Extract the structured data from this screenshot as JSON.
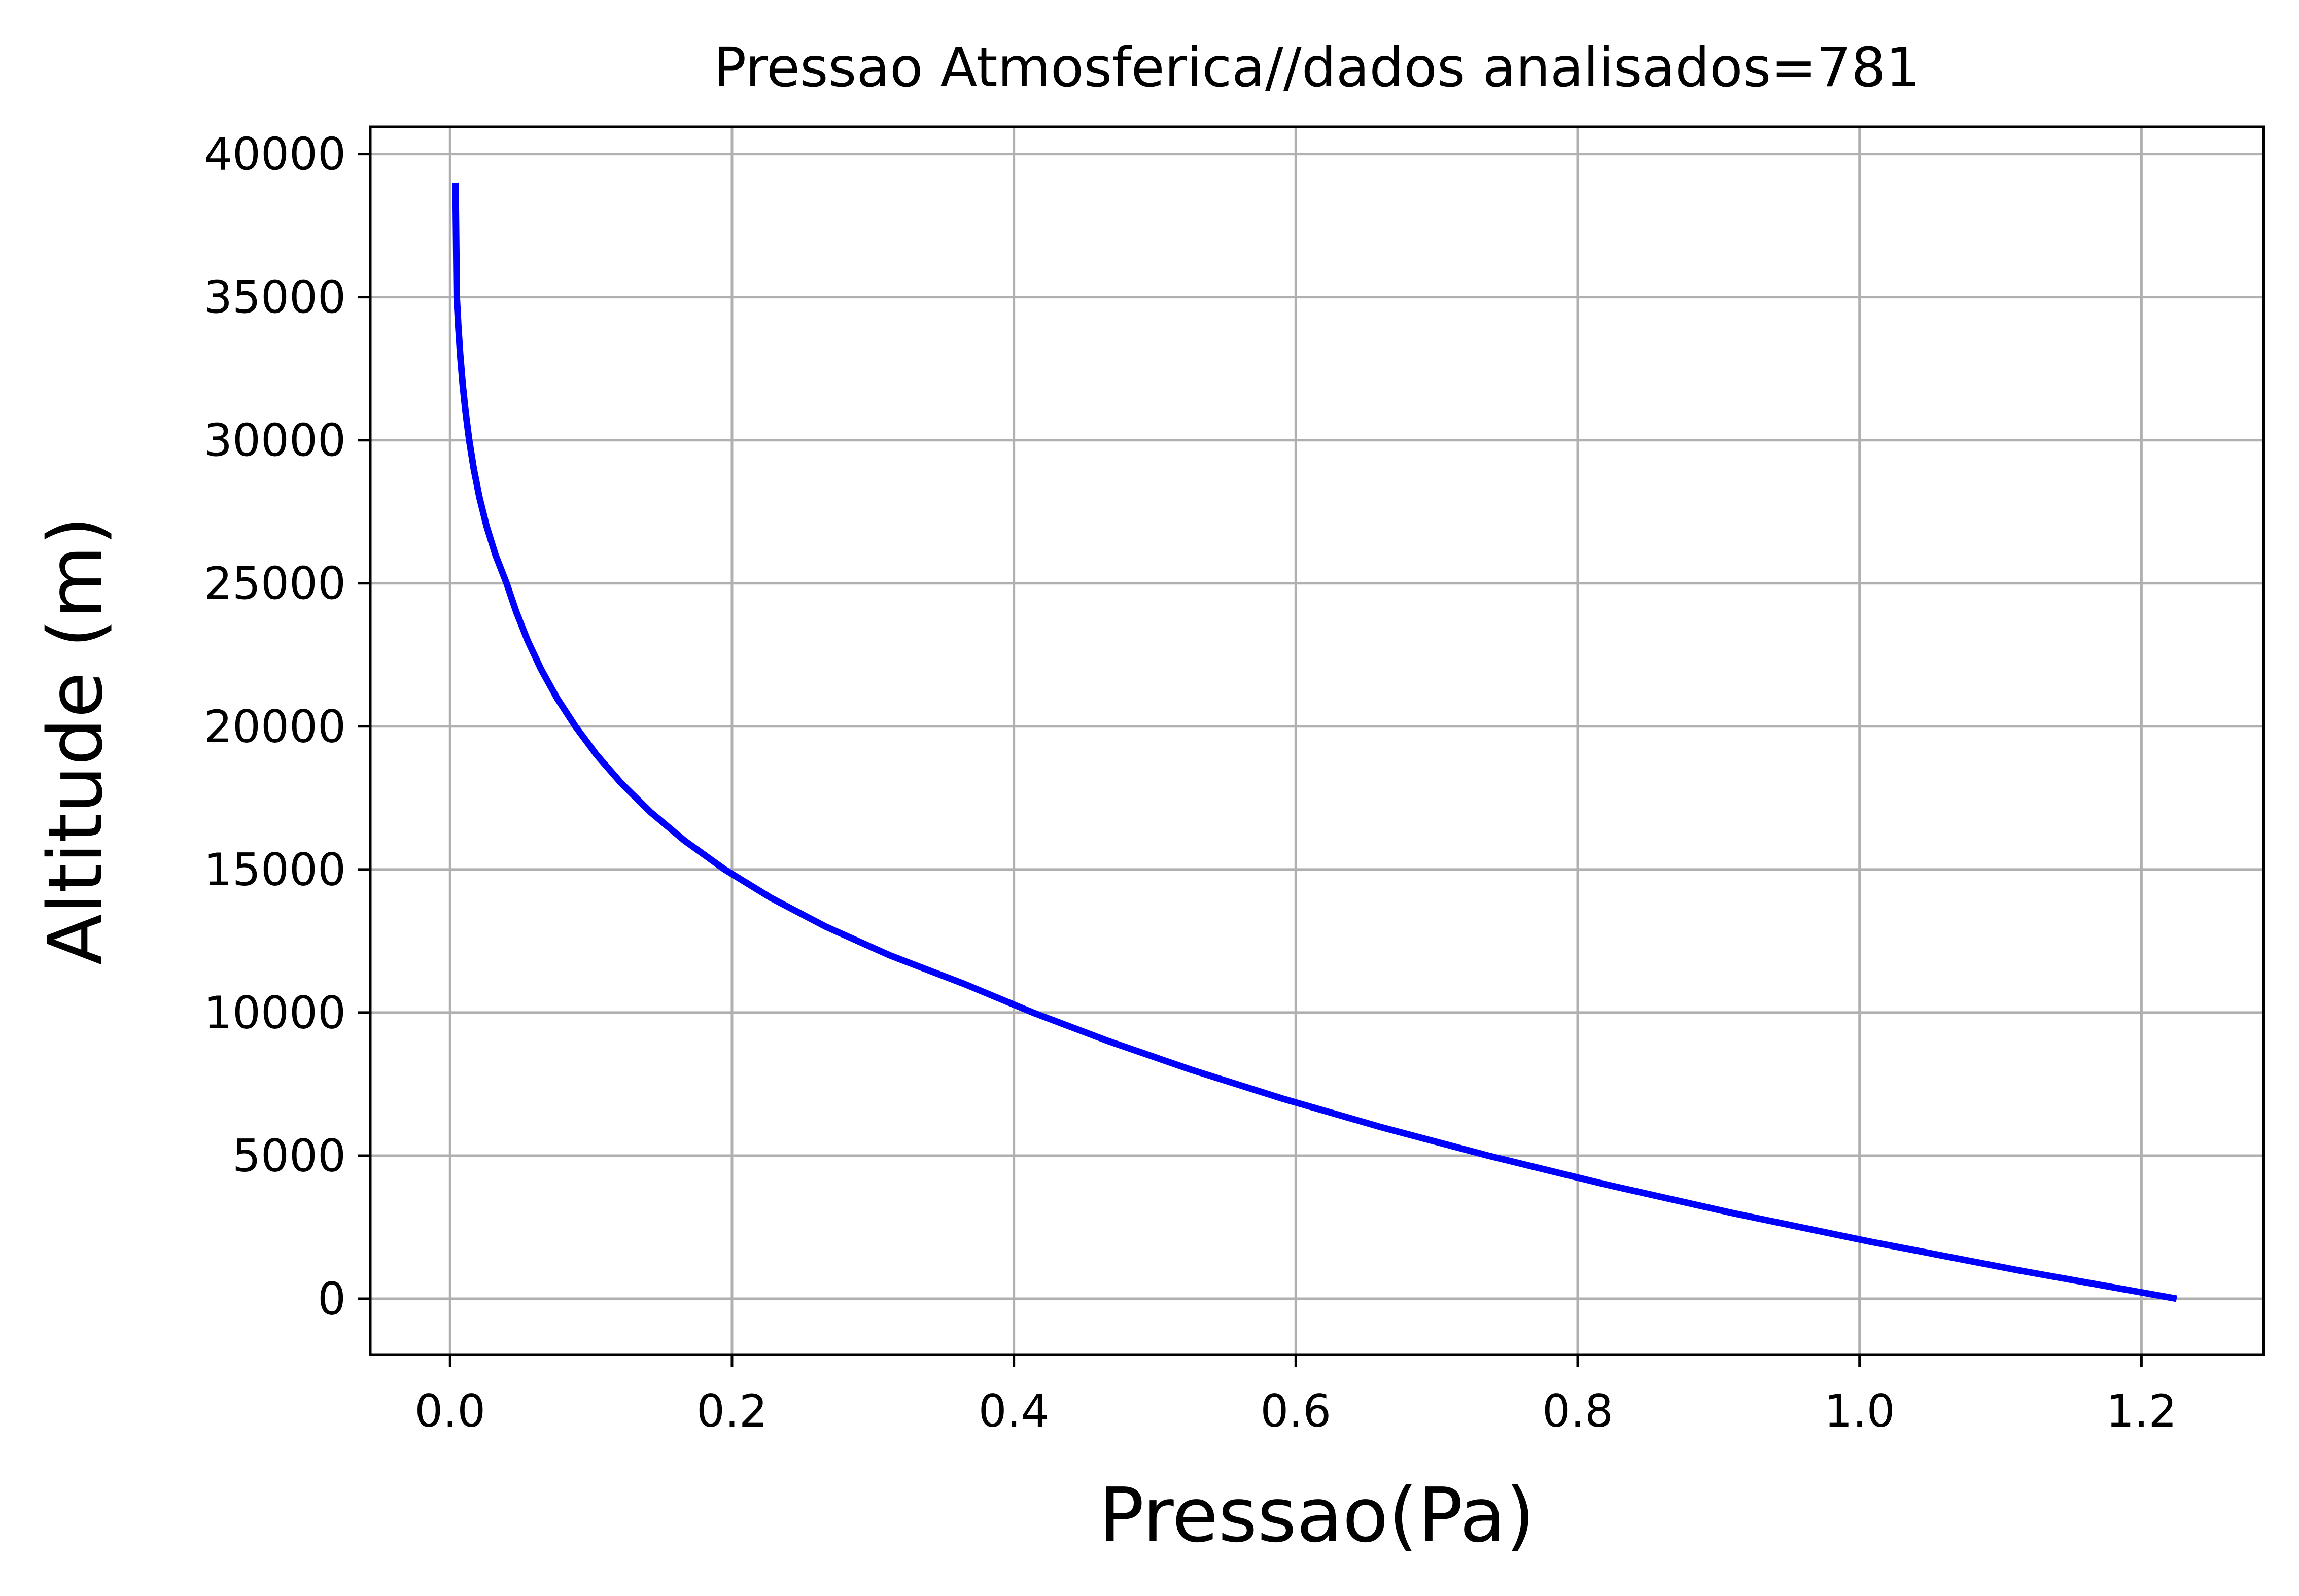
{
  "chart_data": {
    "type": "line",
    "title": "Pressao Atmosferica//dados analisados=781",
    "xlabel": "Pressao(Pa)",
    "ylabel": "Altitude (m)",
    "xlim": [
      -0.0566,
      1.2866
    ],
    "ylim": [
      -1950,
      40950
    ],
    "xticks": [
      0.0,
      0.2,
      0.4,
      0.6,
      0.8,
      1.0,
      1.2
    ],
    "xtick_labels": [
      "0.0",
      "0.2",
      "0.4",
      "0.6",
      "0.8",
      "1.0",
      "1.2"
    ],
    "yticks": [
      0,
      5000,
      10000,
      15000,
      20000,
      25000,
      30000,
      35000,
      40000
    ],
    "ytick_labels": [
      "0",
      "5000",
      "10000",
      "15000",
      "20000",
      "25000",
      "30000",
      "35000",
      "40000"
    ],
    "grid": true,
    "series": [
      {
        "color": "#0000ff",
        "x": [
          1.225,
          1.112,
          1.007,
          0.9093,
          0.8194,
          0.7364,
          0.6601,
          0.59,
          0.5258,
          0.4671,
          0.4135,
          0.3648,
          0.3119,
          0.2666,
          0.2279,
          0.1948,
          0.1665,
          0.1423,
          0.1217,
          0.104,
          0.08891,
          0.07572,
          0.06451,
          0.055,
          0.04694,
          0.04008,
          0.03217,
          0.02585,
          0.02082,
          0.01677,
          0.01355,
          0.01096,
          0.00884,
          0.00715,
          0.0058,
          0.00472,
          0.00385
        ],
        "y": [
          0,
          1000,
          2000,
          3000,
          4000,
          5000,
          6000,
          7000,
          8000,
          9000,
          10000,
          11000,
          12000,
          13000,
          14000,
          15000,
          16000,
          17000,
          18000,
          19000,
          20000,
          21000,
          22000,
          23000,
          24000,
          25000,
          26000,
          27000,
          28000,
          29000,
          30000,
          31000,
          32000,
          33000,
          34000,
          35000,
          39000
        ]
      }
    ]
  }
}
